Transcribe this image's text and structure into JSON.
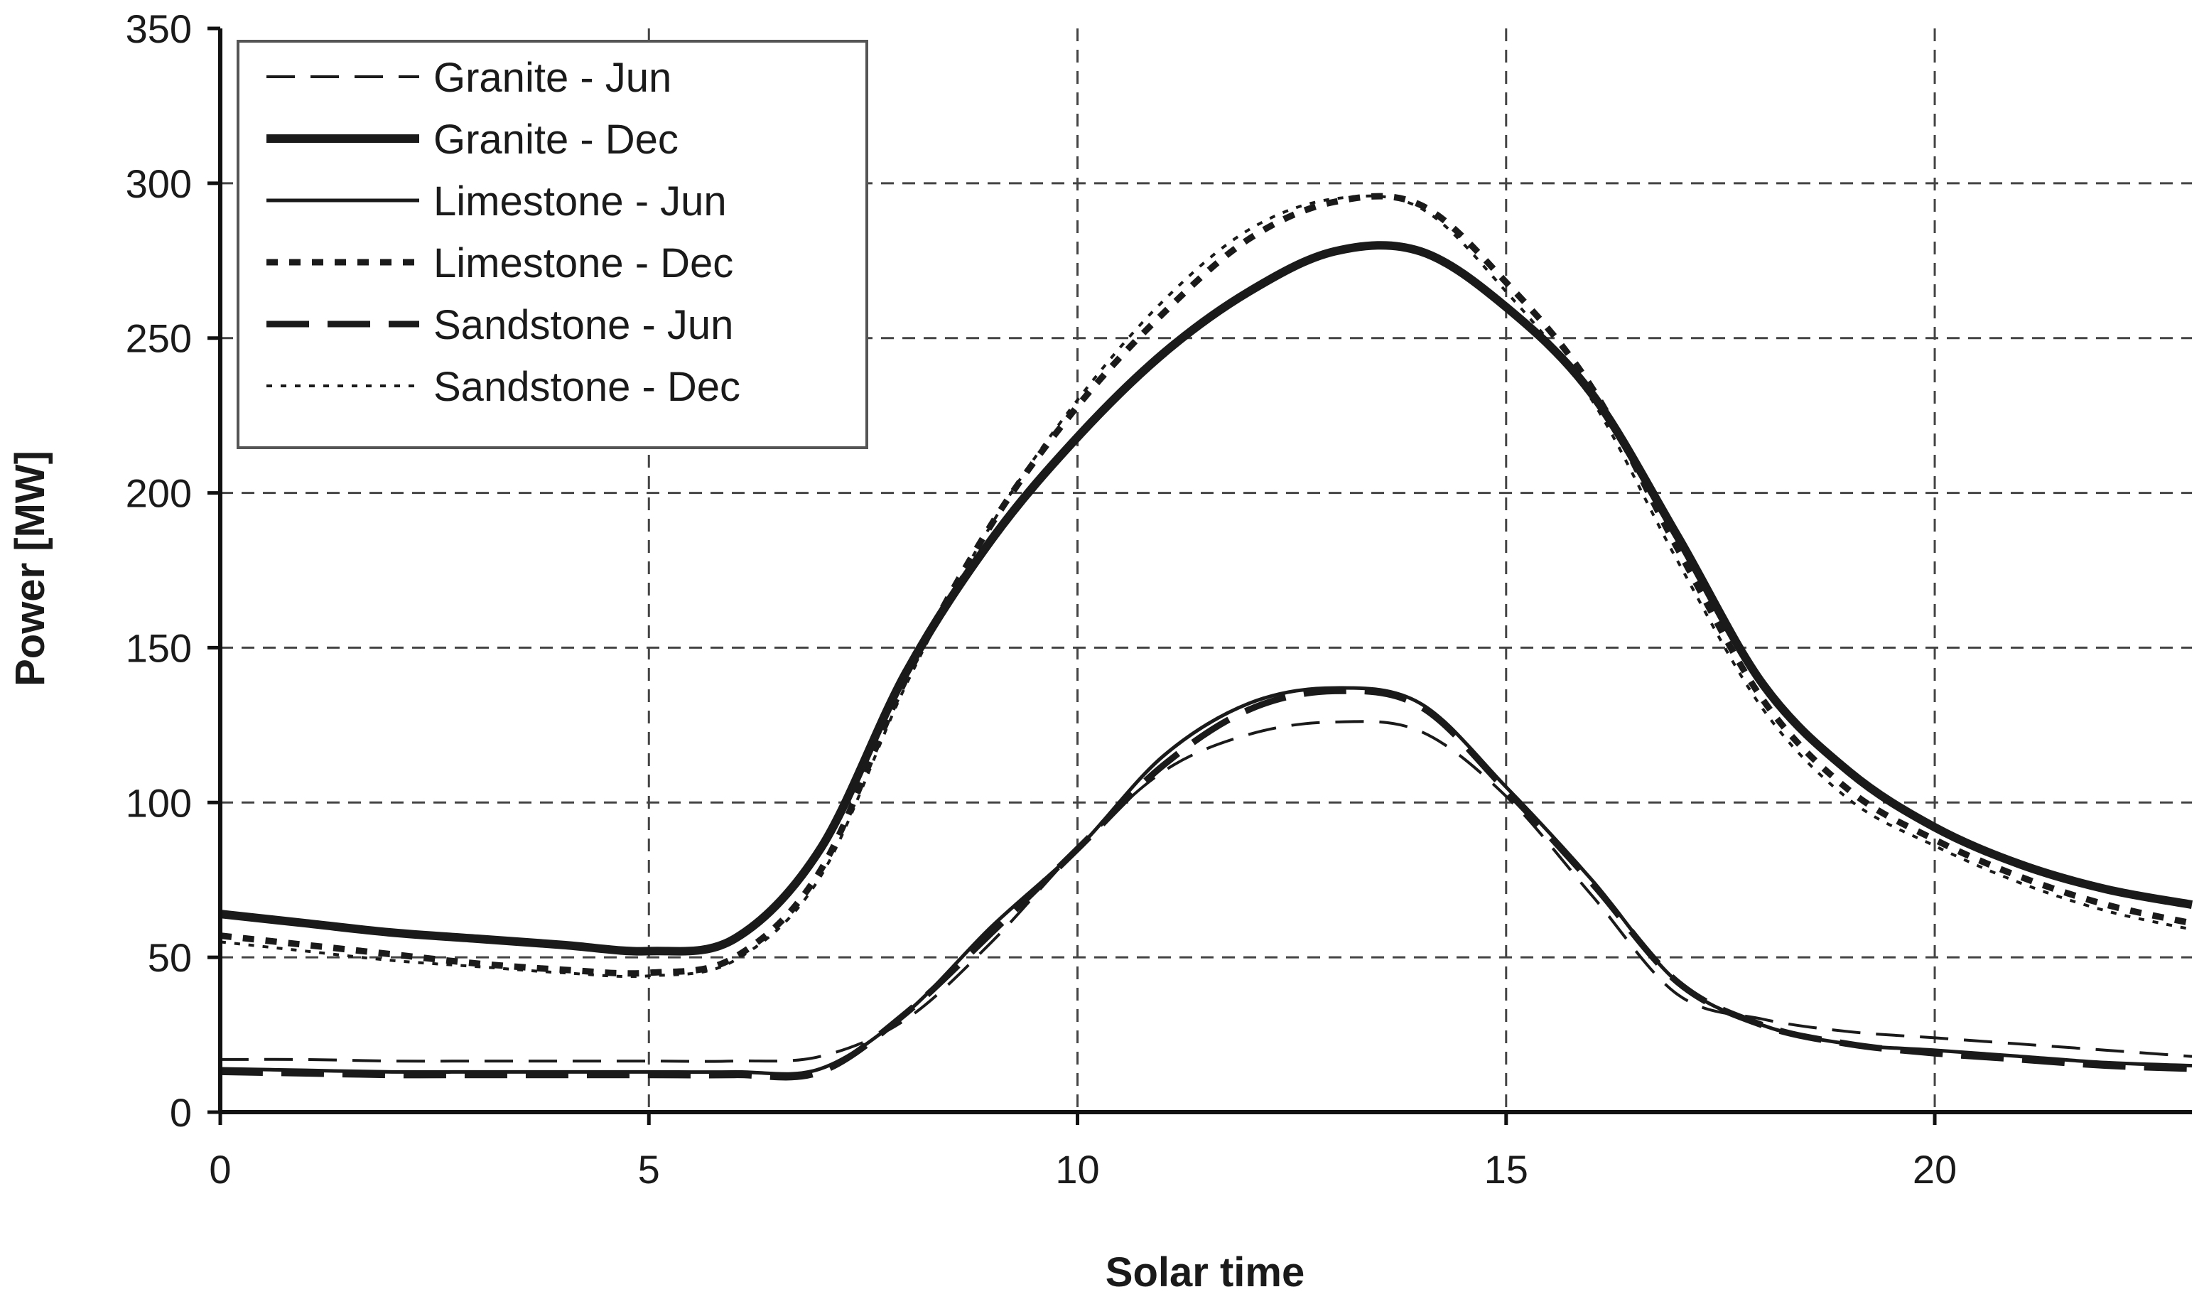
{
  "chart_data": {
    "type": "line",
    "title": "",
    "xlabel": "Solar time",
    "ylabel": "Power [MW]",
    "xlim": [
      0,
      23
    ],
    "ylim": [
      0,
      350
    ],
    "xticks": [
      0,
      5,
      10,
      15,
      20
    ],
    "yticks": [
      0,
      50,
      100,
      150,
      200,
      250,
      300,
      350
    ],
    "grid": true,
    "legend_position": "top-left",
    "x": [
      0,
      1,
      2,
      3,
      4,
      5,
      6,
      7,
      8,
      9,
      10,
      11,
      12,
      13,
      14,
      15,
      16,
      17,
      18,
      19,
      20,
      21,
      22,
      23
    ],
    "series": [
      {
        "name": "Granite - Jun",
        "style": "dashed-thin",
        "values": [
          17,
          17,
          16.5,
          16.5,
          16.5,
          16.5,
          16.5,
          18,
          30,
          55,
          85,
          110,
          122,
          126,
          123,
          102,
          70,
          38,
          30,
          26,
          24,
          22,
          20,
          18
        ]
      },
      {
        "name": "Granite - Dec",
        "style": "solid-thick",
        "values": [
          64,
          61,
          58,
          56,
          54,
          52,
          56,
          85,
          142,
          185,
          218,
          245,
          265,
          278,
          278,
          260,
          232,
          186,
          138,
          110,
          92,
          80,
          72,
          67
        ]
      },
      {
        "name": "Limestone - Jun",
        "style": "solid-thin",
        "values": [
          14,
          13.5,
          13,
          13,
          13,
          13,
          13,
          14,
          32,
          60,
          85,
          115,
          132,
          137,
          132,
          105,
          75,
          42,
          28,
          22,
          20,
          18,
          16,
          15
        ]
      },
      {
        "name": "Limestone - Dec",
        "style": "dotted-thick",
        "values": [
          57,
          54,
          51,
          48,
          46,
          45,
          50,
          78,
          140,
          190,
          228,
          258,
          282,
          294,
          293,
          268,
          234,
          182,
          133,
          104,
          88,
          76,
          67,
          61
        ]
      },
      {
        "name": "Sandstone - Jun",
        "style": "longdash-thick",
        "values": [
          13,
          12.5,
          12,
          12,
          12,
          12,
          12,
          13,
          32,
          58,
          85,
          112,
          130,
          136,
          131,
          104,
          74,
          42,
          28,
          22,
          19,
          17,
          15,
          14
        ]
      },
      {
        "name": "Sandstone - Dec",
        "style": "dotted-thin",
        "values": [
          55,
          52,
          49,
          47,
          45,
          44,
          49,
          76,
          138,
          190,
          230,
          262,
          285,
          295,
          292,
          265,
          230,
          178,
          130,
          101,
          86,
          74,
          65,
          59
        ]
      }
    ]
  },
  "colors": {
    "line": "#1a1a1a",
    "grid": "#444444",
    "axis": "#111111"
  }
}
